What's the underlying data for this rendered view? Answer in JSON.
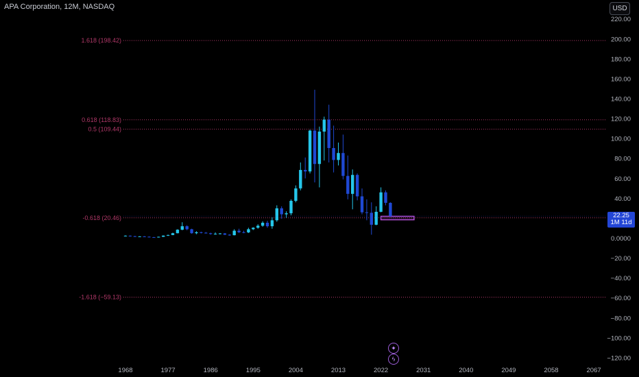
{
  "header": {
    "title": "APA Corporation, 12M, NASDAQ",
    "currency": "USD"
  },
  "price_badge": {
    "price": "22.25",
    "countdown": "1M 11d"
  },
  "buttons": {
    "top_icon": "plus-icon",
    "bottom_icon": "lightning-icon"
  },
  "colors": {
    "up": "#25c6ea",
    "down": "#1f49d4",
    "fib": "#b03868",
    "box": "#b34fd6",
    "price": "#2346d6"
  },
  "chart_data": {
    "type": "candlestick",
    "title": "APA Corporation, 12M, NASDAQ",
    "ylim": [
      -125,
      230
    ],
    "yticks": [
      220,
      200,
      180,
      160,
      140,
      120,
      100,
      80,
      60,
      40,
      20,
      0,
      -20,
      -40,
      -60,
      -80,
      -100,
      -120
    ],
    "ytick_labels": [
      "220.00",
      "200.00",
      "180.00",
      "160.00",
      "140.00",
      "120.00",
      "100.00",
      "80.00",
      "60.00",
      "40.00",
      "20.00",
      "0.0000",
      "−20.00",
      "−40.00",
      "−60.00",
      "−80.00",
      "−100.00",
      "−120.00"
    ],
    "xlim": [
      1968,
      2069
    ],
    "xticks": [
      "1968",
      "1977",
      "1986",
      "1995",
      "2004",
      "2013",
      "2022",
      "2031",
      "2040",
      "2049",
      "2058",
      "2067"
    ],
    "fib_levels": [
      {
        "label": "1.618 (198.42)",
        "value": 198.42
      },
      {
        "label": "0.618 (118.83)",
        "value": 118.83
      },
      {
        "label": "0.5 (109.44)",
        "value": 109.44
      },
      {
        "label": "-0.618 (20.46)",
        "value": 20.46
      },
      {
        "label": "-1.618 (−59.13)",
        "value": -59.13
      }
    ],
    "target_box": {
      "x_start": 2022,
      "x_end": 2029,
      "y_low": 18.5,
      "y_high": 22
    },
    "candles": [
      {
        "year": 1968,
        "o": 2.2,
        "h": 2.8,
        "l": 1.7,
        "c": 2.5
      },
      {
        "year": 1969,
        "o": 2.5,
        "h": 2.8,
        "l": 1.6,
        "c": 2.0
      },
      {
        "year": 1970,
        "o": 2.0,
        "h": 2.4,
        "l": 1.3,
        "c": 1.6
      },
      {
        "year": 1971,
        "o": 1.6,
        "h": 2.0,
        "l": 1.2,
        "c": 1.8
      },
      {
        "year": 1972,
        "o": 1.8,
        "h": 2.1,
        "l": 1.2,
        "c": 1.5
      },
      {
        "year": 1973,
        "o": 1.5,
        "h": 1.8,
        "l": 0.8,
        "c": 1.0
      },
      {
        "year": 1974,
        "o": 1.0,
        "h": 1.3,
        "l": 0.5,
        "c": 0.8
      },
      {
        "year": 1975,
        "o": 0.8,
        "h": 1.6,
        "l": 0.6,
        "c": 1.4
      },
      {
        "year": 1976,
        "o": 1.4,
        "h": 2.8,
        "l": 1.2,
        "c": 2.6
      },
      {
        "year": 1977,
        "o": 2.6,
        "h": 3.6,
        "l": 2.2,
        "c": 3.2
      },
      {
        "year": 1978,
        "o": 3.2,
        "h": 5.5,
        "l": 3.0,
        "c": 5.0
      },
      {
        "year": 1979,
        "o": 5.0,
        "h": 9.0,
        "l": 4.8,
        "c": 8.5
      },
      {
        "year": 1980,
        "o": 8.5,
        "h": 16.0,
        "l": 8.0,
        "c": 12.0
      },
      {
        "year": 1981,
        "o": 12.0,
        "h": 13.0,
        "l": 8.0,
        "c": 9.0
      },
      {
        "year": 1982,
        "o": 9.0,
        "h": 9.5,
        "l": 4.5,
        "c": 5.0
      },
      {
        "year": 1983,
        "o": 5.0,
        "h": 7.0,
        "l": 4.0,
        "c": 6.0
      },
      {
        "year": 1984,
        "o": 6.0,
        "h": 6.5,
        "l": 4.8,
        "c": 5.5
      },
      {
        "year": 1985,
        "o": 5.5,
        "h": 6.2,
        "l": 4.6,
        "c": 5.0
      },
      {
        "year": 1986,
        "o": 5.0,
        "h": 5.5,
        "l": 3.5,
        "c": 4.2
      },
      {
        "year": 1987,
        "o": 4.2,
        "h": 5.8,
        "l": 3.5,
        "c": 4.5
      },
      {
        "year": 1988,
        "o": 4.5,
        "h": 5.2,
        "l": 3.8,
        "c": 4.8
      },
      {
        "year": 1989,
        "o": 4.8,
        "h": 5.2,
        "l": 3.2,
        "c": 3.5
      },
      {
        "year": 1990,
        "o": 3.5,
        "h": 4.0,
        "l": 2.5,
        "c": 3.0
      },
      {
        "year": 1991,
        "o": 3.0,
        "h": 9.0,
        "l": 2.8,
        "c": 7.5
      },
      {
        "year": 1992,
        "o": 7.5,
        "h": 9.5,
        "l": 5.2,
        "c": 6.0
      },
      {
        "year": 1993,
        "o": 6.0,
        "h": 7.5,
        "l": 5.0,
        "c": 5.8
      },
      {
        "year": 1994,
        "o": 5.8,
        "h": 10.5,
        "l": 5.2,
        "c": 9.0
      },
      {
        "year": 1995,
        "o": 9.0,
        "h": 11.0,
        "l": 8.2,
        "c": 10.5
      },
      {
        "year": 1996,
        "o": 10.5,
        "h": 14.0,
        "l": 9.5,
        "c": 12.5
      },
      {
        "year": 1997,
        "o": 12.5,
        "h": 17.0,
        "l": 11.5,
        "c": 15.5
      },
      {
        "year": 1998,
        "o": 15.5,
        "h": 17.5,
        "l": 10.5,
        "c": 12.0
      },
      {
        "year": 1999,
        "o": 12.0,
        "h": 21.0,
        "l": 9.5,
        "c": 18.0
      },
      {
        "year": 2000,
        "o": 18.0,
        "h": 33.0,
        "l": 16.5,
        "c": 30.0
      },
      {
        "year": 2001,
        "o": 30.0,
        "h": 32.0,
        "l": 19.5,
        "c": 24.0
      },
      {
        "year": 2002,
        "o": 24.0,
        "h": 27.0,
        "l": 20.5,
        "c": 25.0
      },
      {
        "year": 2003,
        "o": 25.0,
        "h": 39.0,
        "l": 23.0,
        "c": 37.5
      },
      {
        "year": 2004,
        "o": 37.5,
        "h": 53.0,
        "l": 36.0,
        "c": 50.0
      },
      {
        "year": 2005,
        "o": 50.0,
        "h": 76.0,
        "l": 48.0,
        "c": 68.5
      },
      {
        "year": 2006,
        "o": 68.5,
        "h": 81.0,
        "l": 60.0,
        "c": 67.0
      },
      {
        "year": 2007,
        "o": 67.0,
        "h": 109.0,
        "l": 65.0,
        "c": 108.0
      },
      {
        "year": 2008,
        "o": 108.0,
        "h": 149.0,
        "l": 56.0,
        "c": 74.5
      },
      {
        "year": 2009,
        "o": 74.5,
        "h": 112.0,
        "l": 51.0,
        "c": 107.0
      },
      {
        "year": 2010,
        "o": 107.0,
        "h": 122.0,
        "l": 78.0,
        "c": 119.0
      },
      {
        "year": 2011,
        "o": 119.0,
        "h": 134.0,
        "l": 76.0,
        "c": 90.5
      },
      {
        "year": 2012,
        "o": 90.5,
        "h": 113.0,
        "l": 66.0,
        "c": 78.5
      },
      {
        "year": 2013,
        "o": 78.5,
        "h": 96.0,
        "l": 73.0,
        "c": 85.5
      },
      {
        "year": 2014,
        "o": 85.5,
        "h": 104.0,
        "l": 59.0,
        "c": 62.5
      },
      {
        "year": 2015,
        "o": 62.5,
        "h": 83.0,
        "l": 39.0,
        "c": 44.5
      },
      {
        "year": 2016,
        "o": 44.5,
        "h": 69.0,
        "l": 29.0,
        "c": 63.5
      },
      {
        "year": 2017,
        "o": 63.5,
        "h": 65.0,
        "l": 38.0,
        "c": 42.0
      },
      {
        "year": 2018,
        "o": 42.0,
        "h": 50.0,
        "l": 24.0,
        "c": 26.0
      },
      {
        "year": 2019,
        "o": 26.0,
        "h": 39.0,
        "l": 18.0,
        "c": 25.5
      },
      {
        "year": 2020,
        "o": 25.5,
        "h": 36.0,
        "l": 3.5,
        "c": 13.5
      },
      {
        "year": 2021,
        "o": 13.5,
        "h": 32.0,
        "l": 13.0,
        "c": 26.5
      },
      {
        "year": 2022,
        "o": 26.5,
        "h": 51.0,
        "l": 26.0,
        "c": 46.0
      },
      {
        "year": 2023,
        "o": 46.0,
        "h": 48.0,
        "l": 33.0,
        "c": 35.5
      },
      {
        "year": 2024,
        "o": 35.5,
        "h": 36.0,
        "l": 21.0,
        "c": 22.25
      }
    ]
  }
}
